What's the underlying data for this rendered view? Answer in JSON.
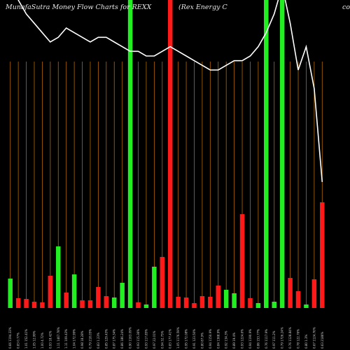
{
  "chart_data": {
    "type": "bar",
    "title": "MunafaSutra  Money Flow  Charts for REXX",
    "subtitle": "(Rex Energy C",
    "corner_text": "co",
    "xlabel": "",
    "ylabel": "",
    "grid": true,
    "colors": {
      "background": "#000000",
      "grid": "#b36a00",
      "up": "#22ee22",
      "down": "#ff1a1a",
      "line": "#ffffff",
      "text": "#e6e6e6"
    },
    "ylim": [
      0,
      440
    ],
    "categories": [
      "0.66 1194.33%",
      "0.83 0.77%",
      "1.01 152.41%",
      "1.05 12.99%",
      "1.00 4.72%",
      "0.93 18.42%",
      "1.11 1467.78%",
      "1.11 109.43%",
      "1.04 172.99%",
      "0.98 18.28%",
      "0.79 218.05%",
      "0.83 1.23%",
      "0.85 129.43%",
      "0.87 175.34%",
      "0.86 186.24%",
      "0.90 1163.09%",
      "0.93 115.36%",
      "0.93 117.85%",
      "0.97 22.01%",
      "0.94 32.75%",
      "0.83 177.41%",
      "1.05 1176.59%",
      "0.95 172.08%",
      "0.91 123.50%",
      "0.80 87.9%",
      "0.94 1150.9%",
      "0.84 1368.9%",
      "0.92 134.3%",
      "0.89 19.4%",
      "0.93 1224.6%",
      "0.94 1190.9%",
      "0.86 153.77%",
      "0.76 1117.9%",
      "0.97 111.2%",
      "0.79 1726.24%",
      "0.76 1128.84%",
      "0.78 122.76%",
      "0.80 1.3%",
      "0.67 1124.76%",
      "0.63 2186%"
    ],
    "series": [
      {
        "direction": [
          "up",
          "down",
          "down",
          "down",
          "down",
          "down",
          "up",
          "down",
          "up",
          "down",
          "down",
          "down",
          "down",
          "up",
          "up",
          "up",
          "down",
          "up",
          "up",
          "down",
          "down",
          "down",
          "down",
          "down",
          "down",
          "down",
          "down",
          "up",
          "up",
          "down",
          "down",
          "up",
          "up",
          "up",
          "up",
          "down",
          "down",
          "up",
          "down",
          "down"
        ],
        "values": [
          42,
          14,
          13,
          9,
          8,
          46,
          88,
          22,
          48,
          11,
          11,
          30,
          17,
          15,
          36,
          440,
          8,
          5,
          59,
          73,
          440,
          16,
          15,
          7,
          17,
          16,
          32,
          26,
          21,
          134,
          14,
          7,
          440,
          9,
          440,
          43,
          24,
          5,
          41,
          151
        ]
      },
      {
        "type": "line",
        "values": [
          1.12,
          1.05,
          1.02,
          1.0,
          0.98,
          0.96,
          0.97,
          0.99,
          0.98,
          0.97,
          0.96,
          0.97,
          0.97,
          0.96,
          0.95,
          0.94,
          0.94,
          0.93,
          0.93,
          0.94,
          0.95,
          0.94,
          0.93,
          0.92,
          0.91,
          0.9,
          0.9,
          0.91,
          0.92,
          0.92,
          0.93,
          0.95,
          0.98,
          1.02,
          1.08,
          1.0,
          0.9,
          0.95,
          0.86,
          0.66
        ],
        "ylim": [
          0.6,
          1.05
        ]
      }
    ]
  }
}
